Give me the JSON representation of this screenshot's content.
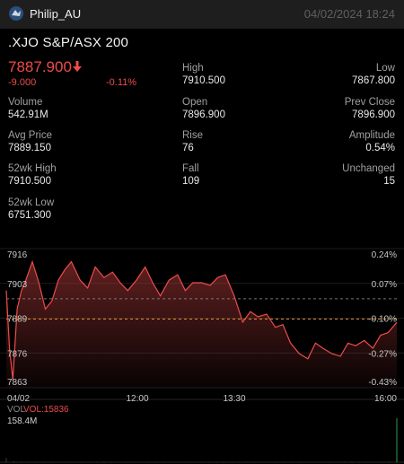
{
  "header": {
    "app_name": "Philip_AU",
    "datetime": "04/02/2024  18:24"
  },
  "quote": {
    "symbol": ".XJO  S&P/ASX 200",
    "price": "7887.900",
    "change": "-9.000",
    "change_pct": "-0.11%",
    "direction": "down"
  },
  "stats": {
    "high_label": "High",
    "high": "7910.500",
    "low_label": "Low",
    "low": "7867.800",
    "volume_label": "Volume",
    "volume": "542.91M",
    "open_label": "Open",
    "open": "7896.900",
    "prev_close_label": "Prev Close",
    "prev_close": "7896.900",
    "avg_price_label": "Avg Price",
    "avg_price": "7889.150",
    "rise_label": "Rise",
    "rise": "76",
    "amplitude_label": "Amplitude",
    "amplitude": "0.54%",
    "wk52_high_label": "52wk High",
    "wk52_high": "7910.500",
    "fall_label": "Fall",
    "fall": "109",
    "unchanged_label": "Unchanged",
    "unchanged": "15",
    "wk52_low_label": "52wk Low",
    "wk52_low": "6751.300"
  },
  "colors": {
    "down": "#ee4b4b",
    "up": "#2ea043",
    "avg_line": "#e08a2a",
    "prev_close_line": "#777777"
  },
  "chart_data": {
    "type": "area",
    "title": "",
    "price_axis_labels": [
      "7916",
      "7903",
      "7889",
      "7876",
      "7863"
    ],
    "pct_axis_labels": [
      "0.24%",
      "0.07%",
      "-0.10%",
      "-0.27%",
      "-0.43%"
    ],
    "time_labels": [
      "04/02",
      "12:00",
      "13:30",
      "16:00"
    ],
    "ylim": [
      7863,
      7916
    ],
    "prev_close": 7896.9,
    "avg_price": 7889.15,
    "x_start": "10:00",
    "x_end": "16:00",
    "series": [
      {
        "x": [
          "10:00",
          "10:03",
          "10:06",
          "10:10",
          "10:14",
          "10:18",
          "10:24",
          "10:30",
          "10:36",
          "10:42",
          "10:48",
          "10:54",
          "11:00",
          "11:08",
          "11:15",
          "11:22",
          "11:30",
          "11:38",
          "11:45",
          "11:52",
          "12:00",
          "12:08",
          "12:15",
          "12:22",
          "12:30",
          "12:38",
          "12:45",
          "12:52",
          "13:00",
          "13:08",
          "13:15",
          "13:22",
          "13:30",
          "13:38",
          "13:45",
          "13:52",
          "14:00",
          "14:08",
          "14:15",
          "14:22",
          "14:30",
          "14:38",
          "14:45",
          "14:52",
          "15:00",
          "15:08",
          "15:15",
          "15:22",
          "15:30",
          "15:38",
          "15:45",
          "15:52",
          "16:00"
        ],
        "values": [
          7900,
          7878,
          7866,
          7893,
          7900,
          7904,
          7911,
          7903,
          7893,
          7896,
          7904,
          7908,
          7911,
          7904,
          7901,
          7909,
          7905,
          7907,
          7903,
          7900,
          7904,
          7909,
          7903,
          7898,
          7904,
          7906,
          7900,
          7903,
          7903,
          7902,
          7905,
          7906,
          7898,
          7888,
          7892,
          7890,
          7891,
          7886,
          7887,
          7880,
          7876,
          7874,
          7880,
          7878,
          7876,
          7875,
          7880,
          7879,
          7881,
          7878,
          7883,
          7884,
          7887.9
        ]
      }
    ],
    "volume": {
      "label": "VOL",
      "value_label": "VOL:15836",
      "max_label": "158.4M",
      "values": [
        15.6,
        3.3,
        2.4,
        2.2,
        2.0,
        1.9,
        1.9,
        1.8,
        1.7,
        1.7,
        1.6,
        1.6,
        1.5,
        1.5,
        1.4,
        1.4,
        1.4,
        1.3,
        1.3,
        1.3,
        1.2,
        1.2,
        1.2,
        1.2,
        1.1,
        1.1,
        1.1,
        1.1,
        1.0,
        1.0,
        1.0,
        1.0,
        1.0,
        1.1,
        1.1,
        1.1,
        1.2,
        1.2,
        1.3,
        1.3,
        1.4,
        1.4,
        1.5,
        1.5,
        1.6,
        1.6,
        1.7,
        1.7,
        1.8,
        1.9,
        2.2,
        2.6,
        158.4
      ]
    }
  }
}
